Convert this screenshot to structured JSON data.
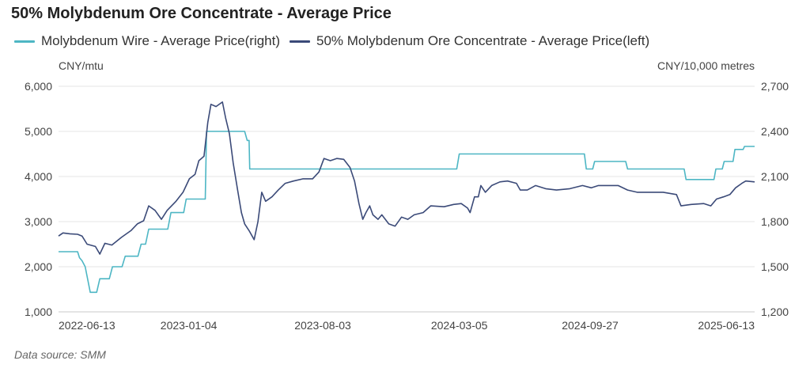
{
  "chart_data": {
    "type": "line",
    "title": "50% Molybdenum Ore Concentrate - Average Price",
    "legend_position": "top-left",
    "grid": true,
    "left_axis": {
      "unit": "CNY/mtu",
      "ticks": [
        1000,
        2000,
        3000,
        4000,
        5000,
        6000
      ],
      "ylim": [
        1000,
        6000
      ]
    },
    "right_axis": {
      "unit": "CNY/10,000 metres",
      "ticks": [
        1200,
        1500,
        1800,
        2100,
        2400,
        2700
      ],
      "ylim": [
        1200,
        2700
      ]
    },
    "x_tick_labels": [
      "2022-06-13",
      "2023-01-04",
      "2023-08-03",
      "2024-03-05",
      "2024-09-27",
      "2025-06-13"
    ],
    "xlim": [
      "2022-06-13",
      "2025-06-13"
    ],
    "series": [
      {
        "name": "Molybdenum Wire - Average Price(right)",
        "axis": "right",
        "color": "#4db6c4",
        "points": [
          [
            "2022-06-13",
            1600
          ],
          [
            "2022-07-13",
            1600
          ],
          [
            "2022-07-16",
            1560
          ],
          [
            "2022-07-20",
            1540
          ],
          [
            "2022-07-25",
            1500
          ],
          [
            "2022-08-02",
            1330
          ],
          [
            "2022-08-12",
            1330
          ],
          [
            "2022-08-17",
            1420
          ],
          [
            "2022-09-01",
            1420
          ],
          [
            "2022-09-06",
            1500
          ],
          [
            "2022-09-21",
            1500
          ],
          [
            "2022-09-26",
            1570
          ],
          [
            "2022-10-16",
            1570
          ],
          [
            "2022-10-21",
            1650
          ],
          [
            "2022-10-28",
            1650
          ],
          [
            "2022-11-02",
            1750
          ],
          [
            "2022-12-02",
            1750
          ],
          [
            "2022-12-07",
            1860
          ],
          [
            "2022-12-27",
            1860
          ],
          [
            "2022-12-31",
            1950
          ],
          [
            "2023-01-30",
            1950
          ],
          [
            "2023-02-01",
            2400
          ],
          [
            "2023-04-02",
            2400
          ],
          [
            "2023-04-06",
            2340
          ],
          [
            "2023-04-09",
            2340
          ],
          [
            "2023-04-10",
            2150
          ],
          [
            "2024-03-01",
            2150
          ],
          [
            "2024-03-05",
            2250
          ],
          [
            "2024-09-18",
            2250
          ],
          [
            "2024-09-21",
            2150
          ],
          [
            "2024-10-01",
            2150
          ],
          [
            "2024-10-04",
            2200
          ],
          [
            "2024-11-22",
            2200
          ],
          [
            "2024-11-25",
            2150
          ],
          [
            "2025-02-22",
            2150
          ],
          [
            "2025-02-25",
            2080
          ],
          [
            "2025-04-10",
            2080
          ],
          [
            "2025-04-13",
            2150
          ],
          [
            "2025-04-23",
            2150
          ],
          [
            "2025-04-26",
            2200
          ],
          [
            "2025-05-10",
            2200
          ],
          [
            "2025-05-13",
            2280
          ],
          [
            "2025-05-26",
            2280
          ],
          [
            "2025-05-28",
            2300
          ],
          [
            "2025-06-13",
            2300
          ]
        ]
      },
      {
        "name": "50% Molybdenum Ore Concentrate - Average Price(left)",
        "axis": "left",
        "color": "#3b4a78",
        "points": [
          [
            "2022-06-13",
            2680
          ],
          [
            "2022-06-20",
            2750
          ],
          [
            "2022-07-01",
            2730
          ],
          [
            "2022-07-13",
            2720
          ],
          [
            "2022-07-20",
            2680
          ],
          [
            "2022-07-28",
            2500
          ],
          [
            "2022-08-10",
            2450
          ],
          [
            "2022-08-17",
            2280
          ],
          [
            "2022-08-25",
            2520
          ],
          [
            "2022-09-05",
            2480
          ],
          [
            "2022-09-20",
            2650
          ],
          [
            "2022-10-05",
            2800
          ],
          [
            "2022-10-15",
            2950
          ],
          [
            "2022-10-25",
            3020
          ],
          [
            "2022-11-02",
            3350
          ],
          [
            "2022-11-12",
            3250
          ],
          [
            "2022-11-22",
            3050
          ],
          [
            "2022-12-01",
            3250
          ],
          [
            "2022-12-15",
            3450
          ],
          [
            "2022-12-26",
            3650
          ],
          [
            "2023-01-05",
            3950
          ],
          [
            "2023-01-14",
            4050
          ],
          [
            "2023-01-20",
            4350
          ],
          [
            "2023-01-28",
            4450
          ],
          [
            "2023-02-03",
            5200
          ],
          [
            "2023-02-08",
            5600
          ],
          [
            "2023-02-16",
            5550
          ],
          [
            "2023-02-26",
            5650
          ],
          [
            "2023-03-03",
            5300
          ],
          [
            "2023-03-09",
            4950
          ],
          [
            "2023-03-15",
            4300
          ],
          [
            "2023-03-22",
            3700
          ],
          [
            "2023-03-28",
            3200
          ],
          [
            "2023-04-02",
            2950
          ],
          [
            "2023-04-09",
            2800
          ],
          [
            "2023-04-17",
            2600
          ],
          [
            "2023-04-23",
            3000
          ],
          [
            "2023-04-29",
            3650
          ],
          [
            "2023-05-05",
            3450
          ],
          [
            "2023-05-15",
            3550
          ],
          [
            "2023-05-25",
            3700
          ],
          [
            "2023-06-05",
            3850
          ],
          [
            "2023-06-18",
            3900
          ],
          [
            "2023-07-03",
            3950
          ],
          [
            "2023-07-18",
            3950
          ],
          [
            "2023-07-28",
            4100
          ],
          [
            "2023-08-05",
            4400
          ],
          [
            "2023-08-15",
            4350
          ],
          [
            "2023-08-25",
            4400
          ],
          [
            "2023-09-05",
            4380
          ],
          [
            "2023-09-15",
            4200
          ],
          [
            "2023-09-22",
            3900
          ],
          [
            "2023-09-29",
            3400
          ],
          [
            "2023-10-05",
            3050
          ],
          [
            "2023-10-10",
            3200
          ],
          [
            "2023-10-16",
            3350
          ],
          [
            "2023-10-21",
            3150
          ],
          [
            "2023-10-29",
            3050
          ],
          [
            "2023-11-04",
            3150
          ],
          [
            "2023-11-15",
            2950
          ],
          [
            "2023-11-25",
            2900
          ],
          [
            "2023-12-05",
            3100
          ],
          [
            "2023-12-15",
            3050
          ],
          [
            "2023-12-25",
            3150
          ],
          [
            "2024-01-08",
            3200
          ],
          [
            "2024-01-20",
            3350
          ],
          [
            "2024-02-10",
            3330
          ],
          [
            "2024-02-25",
            3380
          ],
          [
            "2024-03-08",
            3400
          ],
          [
            "2024-03-18",
            3300
          ],
          [
            "2024-03-22",
            3200
          ],
          [
            "2024-03-29",
            3550
          ],
          [
            "2024-04-04",
            3550
          ],
          [
            "2024-04-08",
            3800
          ],
          [
            "2024-04-15",
            3650
          ],
          [
            "2024-04-25",
            3800
          ],
          [
            "2024-05-08",
            3880
          ],
          [
            "2024-05-20",
            3900
          ],
          [
            "2024-06-03",
            3850
          ],
          [
            "2024-06-09",
            3700
          ],
          [
            "2024-06-20",
            3700
          ],
          [
            "2024-07-03",
            3800
          ],
          [
            "2024-07-19",
            3730
          ],
          [
            "2024-08-05",
            3700
          ],
          [
            "2024-08-26",
            3730
          ],
          [
            "2024-09-15",
            3800
          ],
          [
            "2024-09-29",
            3750
          ],
          [
            "2024-10-10",
            3800
          ],
          [
            "2024-11-10",
            3800
          ],
          [
            "2024-11-25",
            3700
          ],
          [
            "2024-12-10",
            3650
          ],
          [
            "2025-01-20",
            3650
          ],
          [
            "2025-02-10",
            3600
          ],
          [
            "2025-02-17",
            3350
          ],
          [
            "2025-03-05",
            3380
          ],
          [
            "2025-03-25",
            3400
          ],
          [
            "2025-04-05",
            3350
          ],
          [
            "2025-04-14",
            3500
          ],
          [
            "2025-04-25",
            3550
          ],
          [
            "2025-05-05",
            3600
          ],
          [
            "2025-05-14",
            3750
          ],
          [
            "2025-05-24",
            3850
          ],
          [
            "2025-05-30",
            3900
          ],
          [
            "2025-06-13",
            3880
          ]
        ]
      }
    ]
  },
  "footer": {
    "source": "Data source:  SMM"
  }
}
